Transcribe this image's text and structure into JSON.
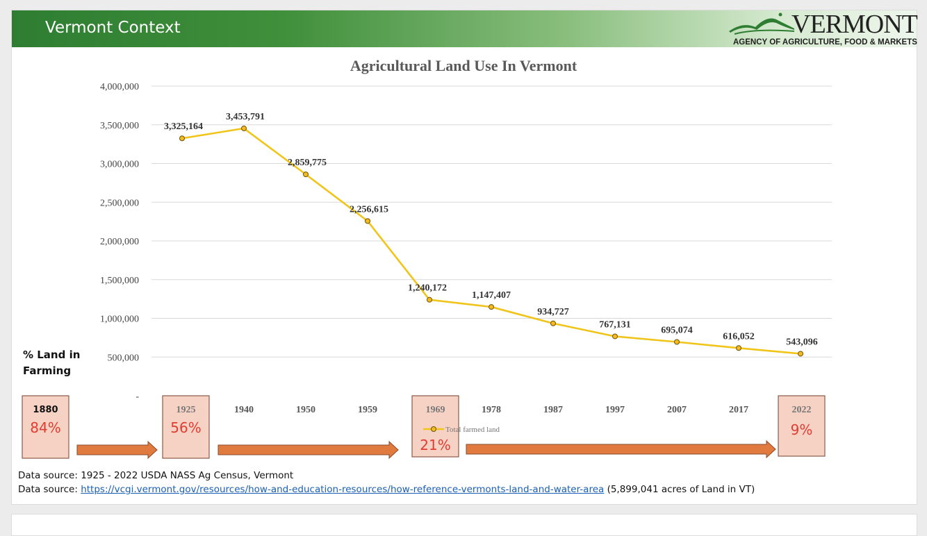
{
  "header": {
    "title": "Vermont Context"
  },
  "logo": {
    "word": "VERMONT",
    "subtitle": "AGENCY OF AGRICULTURE, FOOD & MARKETS"
  },
  "side_label": {
    "line1": "% Land in",
    "line2": "Farming"
  },
  "chart_data": {
    "type": "line",
    "title": "Agricultural Land Use In Vermont",
    "xlabel": "",
    "ylabel": "",
    "ylim": [
      0,
      4000000
    ],
    "yticks": [
      0,
      500000,
      1000000,
      1500000,
      2000000,
      2500000,
      3000000,
      3500000,
      4000000
    ],
    "ytick_labels": [
      "-",
      "500,000",
      "1,000,000",
      "1,500,000",
      "2,000,000",
      "2,500,000",
      "3,000,000",
      "3,500,000",
      "4,000,000"
    ],
    "categories": [
      "1925",
      "1940",
      "1950",
      "1959",
      "1969",
      "1978",
      "1987",
      "1997",
      "2007",
      "2017",
      "2022"
    ],
    "series": [
      {
        "name": "Total farmed land",
        "color": "#f0c419",
        "values": [
          3325164,
          3453791,
          2859775,
          2256615,
          1240172,
          1147407,
          934727,
          767131,
          695074,
          616052,
          543096
        ],
        "labels": [
          "3,325,164",
          "3,453,791",
          "2,859,775",
          "2,256,615",
          "1,240,172",
          "1,147,407",
          "934,727",
          "767,131",
          "695,074",
          "616,052",
          "543,096"
        ]
      }
    ],
    "legend": "bottom-center",
    "grid": true
  },
  "pct_boxes": [
    {
      "year": "1880",
      "pct": "84%"
    },
    {
      "year": "1925",
      "pct": "56%"
    },
    {
      "year": "1969",
      "pct": "21%"
    },
    {
      "year": "2022",
      "pct": "9%"
    }
  ],
  "colors": {
    "box_fill": "#f6d2c4",
    "box_border": "#8a5a4a",
    "pct_text": "#e03c31",
    "arrow": "#e07a3e",
    "grid": "#d9d9d9"
  },
  "footnotes": {
    "line1": "Data source: 1925 - 2022 USDA NASS Ag Census, Vermont",
    "line2_prefix": "Data source: ",
    "line2_link": "https://vcgi.vermont.gov/resources/how-and-education-resources/how-reference-vermonts-land-and-water-area",
    "line2_suffix": " (5,899,041 acres of Land in VT)"
  }
}
